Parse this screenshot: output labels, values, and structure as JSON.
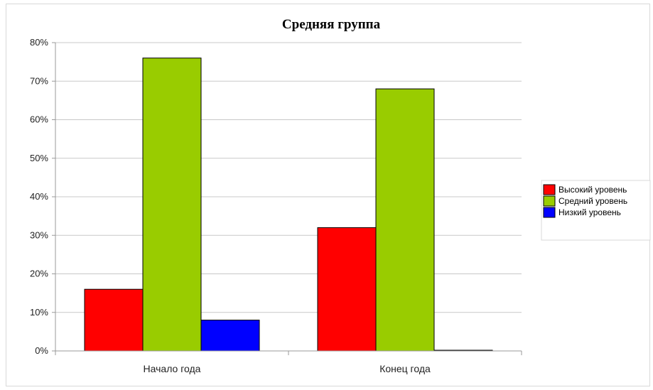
{
  "chart_data": {
    "type": "bar",
    "title": "Средняя группа",
    "categories": [
      "Начало года",
      "Конец года"
    ],
    "series": [
      {
        "name": "Высокий уровень",
        "color": "#ff0000",
        "values": [
          16,
          32
        ]
      },
      {
        "name": "Средний уровень",
        "color": "#99cc00",
        "values": [
          76,
          68
        ]
      },
      {
        "name": "Низкий уровень",
        "color": "#0000ff",
        "values": [
          8,
          0
        ]
      }
    ],
    "ylim": [
      0,
      80
    ],
    "yticks": [
      0,
      10,
      20,
      30,
      40,
      50,
      60,
      70,
      80
    ],
    "ytick_labels": [
      "0%",
      "10%",
      "20%",
      "30%",
      "40%",
      "50%",
      "60%",
      "70%",
      "80%"
    ],
    "grid": true,
    "legend": "right"
  }
}
